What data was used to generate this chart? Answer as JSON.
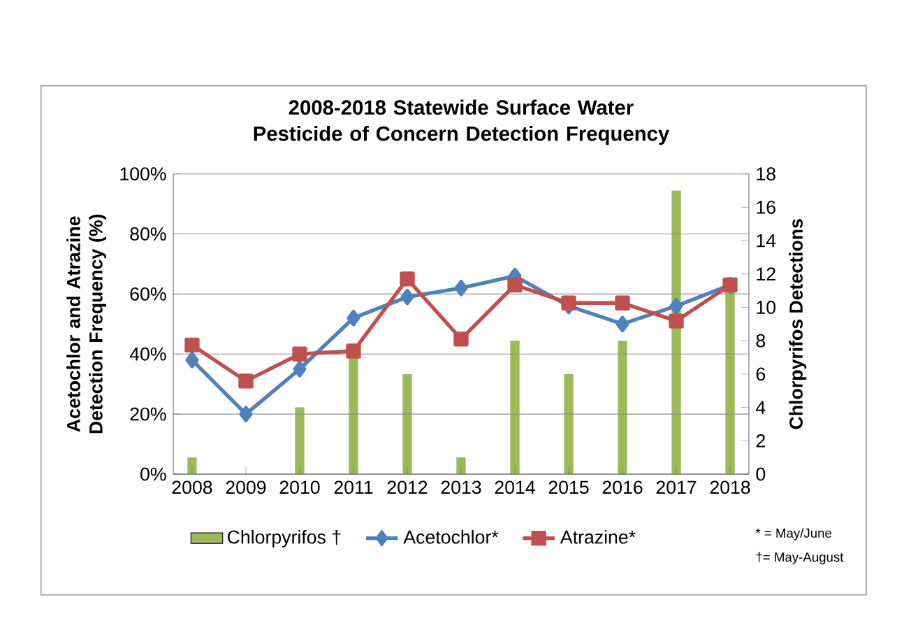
{
  "chart_data": {
    "type": "line",
    "title": "2008-2018 Statewide Surface Water Pesticide of Concern Detection Frequency",
    "ylabel": "Acetochlor and Atrazine Detection Frequency (%)",
    "y2label": "Chlorpyrifos Detections",
    "categories": [
      "2008",
      "2009",
      "2010",
      "2011",
      "2012",
      "2013",
      "2014",
      "2015",
      "2016",
      "2017",
      "2018"
    ],
    "series": [
      {
        "name": "Chlorpyrifos †",
        "type": "bar",
        "axis": "y2",
        "color": "#9bbb59",
        "values": [
          1,
          0,
          4,
          7,
          6,
          1,
          8,
          6,
          8,
          17,
          11
        ]
      },
      {
        "name": "Acetochlor*",
        "color": "#4f81bd",
        "marker": "diamond",
        "values": [
          38,
          20,
          35,
          52,
          59,
          62,
          66,
          56,
          50,
          56,
          63
        ]
      },
      {
        "name": "Atrazine*",
        "color": "#c0504d",
        "marker": "square",
        "values": [
          43,
          31,
          40,
          41,
          65,
          45,
          63,
          57,
          57,
          51,
          63
        ]
      }
    ],
    "ylim": [
      0,
      100
    ],
    "yticks": [
      {
        "value": 0,
        "label": "0%"
      },
      {
        "value": 20,
        "label": "20%"
      },
      {
        "value": 40,
        "label": "40%"
      },
      {
        "value": 60,
        "label": "60%"
      },
      {
        "value": 80,
        "label": "80%"
      },
      {
        "value": 100,
        "label": "100%"
      }
    ],
    "y2lim": [
      0,
      18
    ],
    "y2ticks": [
      0,
      2,
      4,
      6,
      8,
      10,
      12,
      14,
      16,
      18
    ],
    "grid": "y",
    "legend": "bottom",
    "line_style": "solid",
    "annotations": [
      "* = May/June",
      "†= May-August"
    ]
  }
}
